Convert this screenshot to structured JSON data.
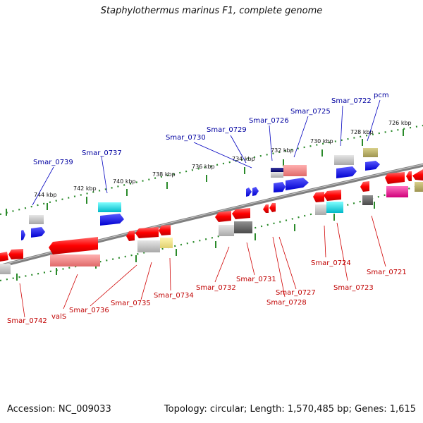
{
  "title": "Staphylothermus marinus F1, complete genome",
  "footer": {
    "accession": "Accession: NC_009033",
    "topology": "Topology: circular; Length: 1,570,485 bp; Genes: 1,615"
  },
  "scale_labels": [
    "726 kbp",
    "728 kbp",
    "730 kbp",
    "732 kbp",
    "734 kbp",
    "736 kbp",
    "738 kbp",
    "740 kbp",
    "742 kbp",
    "744 kbp"
  ],
  "forward_labels": [
    "pcm",
    "Smar_0722",
    "Smar_0725",
    "Smar_0726",
    "Smar_0729",
    "Smar_0730",
    "Smar_0737",
    "Smar_0739"
  ],
  "reverse_labels": [
    "Smar_0721",
    "Smar_0723",
    "Smar_0724",
    "Smar_0727",
    "Smar_0728",
    "Smar_0731",
    "Smar_0732",
    "Smar_0734",
    "Smar_0735",
    "Smar_0736",
    "valS",
    "Smar_0742"
  ],
  "colors": {
    "forward_label": "#0000a0",
    "reverse_label": "#c00000",
    "backbone": "#808080",
    "scale_tick": "#2a8a2a"
  }
}
